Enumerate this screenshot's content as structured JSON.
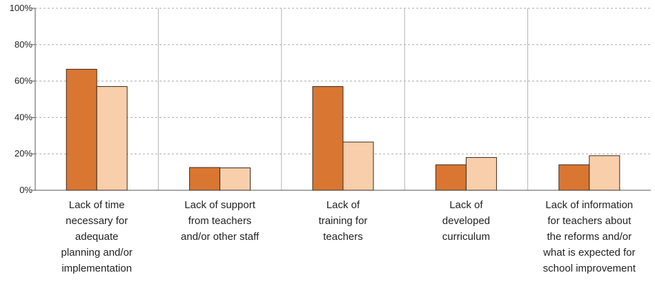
{
  "chart_data": {
    "type": "bar",
    "title": "",
    "xlabel": "",
    "ylabel": "",
    "ylim": [
      0,
      100
    ],
    "y_ticks": [
      "0%",
      "20%",
      "40%",
      "60%",
      "80%",
      "100%"
    ],
    "y_tick_values": [
      0,
      20,
      40,
      60,
      80,
      100
    ],
    "grid": "horizontal dashed",
    "legend": "none",
    "categories": [
      [
        "Lack of time",
        "necessary for",
        "adequate",
        "planning and/or",
        "implementation"
      ],
      [
        "Lack of support",
        "from teachers",
        "and/or other staff"
      ],
      [
        "Lack of",
        "training for",
        "teachers"
      ],
      [
        "Lack of",
        "developed",
        "curriculum"
      ],
      [
        "Lack of information",
        "for teachers about",
        "the reforms and/or",
        "what is expected for",
        "school improvement"
      ]
    ],
    "series": [
      {
        "values": [
          66.5,
          12.5,
          57,
          14,
          14
        ],
        "color": "#d97732"
      },
      {
        "values": [
          57,
          12.3,
          26.5,
          18,
          19
        ],
        "color": "#f8cfaa"
      }
    ]
  }
}
